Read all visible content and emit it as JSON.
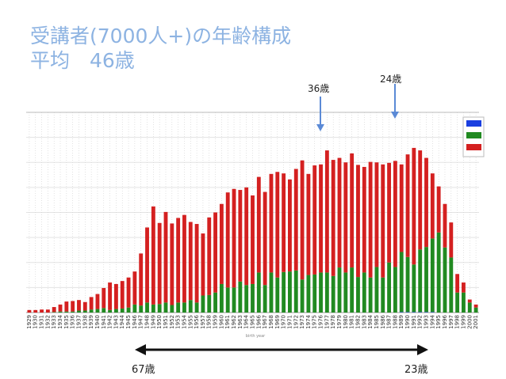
{
  "slide": {
    "title_line1": "受講者(7000人+)の年齢構成",
    "title_line2": "平均　46歳"
  },
  "annotations": {
    "age_36": "36歳",
    "age_24": "24歳",
    "range_start": "67歳",
    "range_end": "23歳"
  },
  "x_axis_caption": "birth year",
  "chart_data": {
    "type": "bar",
    "stacked": true,
    "xlabel": "birth year",
    "ylabel": "",
    "grid": true,
    "legend_position": "top-right",
    "colors": {
      "blue": "#1a3fe0",
      "green": "#218a21",
      "red": "#d42020"
    },
    "categories": [
      "1929",
      "1930",
      "1931",
      "1932",
      "1933",
      "1934",
      "1935",
      "1936",
      "1937",
      "1938",
      "1939",
      "1940",
      "1941",
      "1942",
      "1943",
      "1944",
      "1945",
      "1946",
      "1947",
      "1948",
      "1949",
      "1950",
      "1951",
      "1952",
      "1953",
      "1954",
      "1955",
      "1956",
      "1957",
      "1958",
      "1959",
      "1960",
      "1961",
      "1962",
      "1963",
      "1964",
      "1965",
      "1966",
      "1967",
      "1968",
      "1969",
      "1970",
      "1971",
      "1972",
      "1973",
      "1974",
      "1975",
      "1976",
      "1977",
      "1978",
      "1979",
      "1980",
      "1981",
      "1982",
      "1983",
      "1984",
      "1985",
      "1986",
      "1987",
      "1988",
      "1989",
      "1990",
      "1991",
      "1992",
      "1993",
      "1994",
      "1995",
      "1996",
      "1997",
      "1998",
      "1999",
      "2000",
      "2001"
    ],
    "series": [
      {
        "color": "blue",
        "values": [
          0,
          0,
          0,
          0,
          0,
          0,
          0,
          0,
          0,
          0,
          0,
          0,
          0,
          0,
          0,
          0,
          0,
          0,
          0,
          0,
          0,
          0,
          0,
          0,
          0,
          0,
          0,
          0,
          0,
          0,
          0,
          0,
          0,
          0,
          0,
          0,
          0,
          0,
          0,
          0,
          0,
          0,
          0,
          0,
          0,
          0,
          0,
          0,
          0,
          0,
          0,
          0,
          0,
          0,
          0,
          0,
          0,
          0,
          0,
          0,
          1,
          1,
          1,
          1,
          1,
          1,
          0,
          0,
          0,
          0,
          0,
          0,
          0
        ]
      },
      {
        "color": "green",
        "values": [
          0,
          0,
          0,
          0,
          1,
          2,
          2,
          2,
          4,
          4,
          6,
          7,
          9,
          5,
          7,
          8,
          10,
          16,
          14,
          20,
          16,
          17,
          20,
          15,
          20,
          20,
          25,
          20,
          34,
          35,
          40,
          57,
          50,
          50,
          62,
          55,
          57,
          80,
          55,
          80,
          70,
          81,
          82,
          84,
          66,
          75,
          76,
          80,
          80,
          73,
          90,
          80,
          90,
          71,
          80,
          70,
          91,
          70,
          100,
          91,
          120,
          110,
          95,
          125,
          130,
          147,
          160,
          130,
          110,
          40,
          40,
          20,
          10
        ]
      },
      {
        "color": "red",
        "values": [
          5,
          5,
          6,
          6,
          10,
          14,
          20,
          21,
          21,
          17,
          25,
          30,
          40,
          55,
          50,
          55,
          60,
          66,
          104,
          150,
          196,
          162,
          181,
          163,
          169,
          175,
          156,
          157,
          124,
          155,
          160,
          160,
          190,
          197,
          183,
          195,
          177,
          191,
          186,
          197,
          211,
          197,
          184,
          203,
          238,
          202,
          218,
          216,
          244,
          232,
          219,
          220,
          228,
          224,
          211,
          231,
          209,
          226,
          199,
          212,
          175,
          205,
          233,
          198,
          178,
          130,
          92,
          87,
          70,
          37,
          20,
          6,
          6
        ]
      }
    ]
  }
}
